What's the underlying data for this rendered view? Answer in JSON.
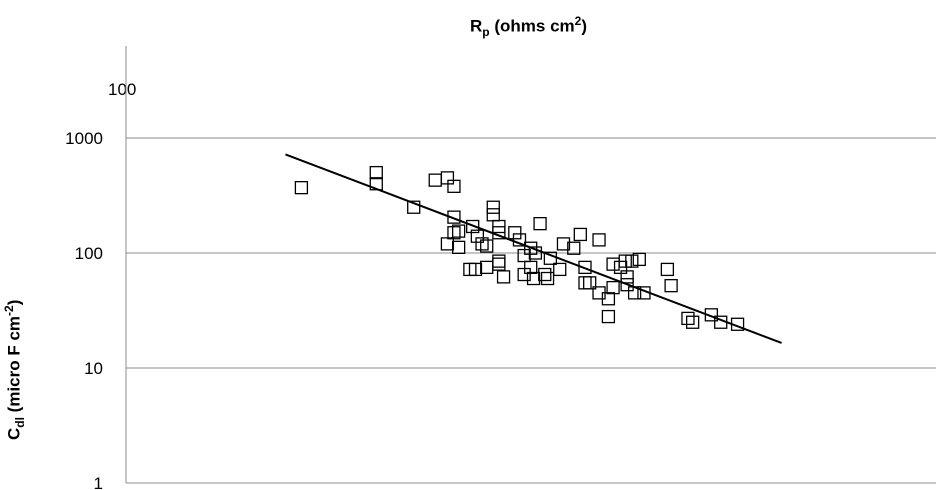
{
  "chart_data": {
    "type": "scatter",
    "title": {
      "main": "R",
      "sub": "p",
      "rest": " (ohms cm",
      "sup": "2",
      "end": ")"
    },
    "ylabel": {
      "main": "C",
      "sub": "dl",
      "rest": " (micro F cm",
      "sup": "-2",
      "end": ")"
    },
    "extra_label": "100",
    "y_scale": "log",
    "ylim": [
      1,
      1000
    ],
    "y_ticks": [
      "1",
      "10",
      "100",
      "1000"
    ],
    "grid": true,
    "x_axis_labels": "none",
    "marker": "open-square",
    "trendline": {
      "from": [
        0.305,
        720
      ],
      "to": [
        0.835,
        16.5
      ]
    },
    "points": [
      [
        0.322,
        370
      ],
      [
        0.402,
        500
      ],
      [
        0.402,
        400
      ],
      [
        0.442,
        250
      ],
      [
        0.465,
        430
      ],
      [
        0.478,
        450
      ],
      [
        0.485,
        380
      ],
      [
        0.485,
        205
      ],
      [
        0.478,
        120
      ],
      [
        0.485,
        150
      ],
      [
        0.49,
        112
      ],
      [
        0.49,
        155
      ],
      [
        0.502,
        72
      ],
      [
        0.505,
        170
      ],
      [
        0.508,
        72
      ],
      [
        0.51,
        140
      ],
      [
        0.515,
        120
      ],
      [
        0.52,
        75
      ],
      [
        0.52,
        115
      ],
      [
        0.527,
        250
      ],
      [
        0.527,
        215
      ],
      [
        0.533,
        170
      ],
      [
        0.533,
        150
      ],
      [
        0.533,
        85
      ],
      [
        0.533,
        80
      ],
      [
        0.538,
        62
      ],
      [
        0.55,
        150
      ],
      [
        0.555,
        130
      ],
      [
        0.56,
        95
      ],
      [
        0.56,
        65
      ],
      [
        0.567,
        110
      ],
      [
        0.567,
        75
      ],
      [
        0.57,
        60
      ],
      [
        0.572,
        100
      ],
      [
        0.577,
        180
      ],
      [
        0.582,
        65
      ],
      [
        0.585,
        60
      ],
      [
        0.588,
        90
      ],
      [
        0.598,
        72
      ],
      [
        0.602,
        120
      ],
      [
        0.613,
        110
      ],
      [
        0.62,
        145
      ],
      [
        0.625,
        75
      ],
      [
        0.625,
        55
      ],
      [
        0.63,
        55
      ],
      [
        0.64,
        130
      ],
      [
        0.64,
        45
      ],
      [
        0.65,
        40
      ],
      [
        0.65,
        28
      ],
      [
        0.655,
        80
      ],
      [
        0.655,
        50
      ],
      [
        0.663,
        75
      ],
      [
        0.668,
        85
      ],
      [
        0.67,
        62
      ],
      [
        0.67,
        53
      ],
      [
        0.675,
        85
      ],
      [
        0.678,
        45
      ],
      [
        0.683,
        88
      ],
      [
        0.688,
        45
      ],
      [
        0.713,
        72
      ],
      [
        0.717,
        52
      ],
      [
        0.735,
        27
      ],
      [
        0.74,
        25
      ],
      [
        0.76,
        29
      ],
      [
        0.77,
        25
      ],
      [
        0.788,
        24
      ]
    ]
  }
}
